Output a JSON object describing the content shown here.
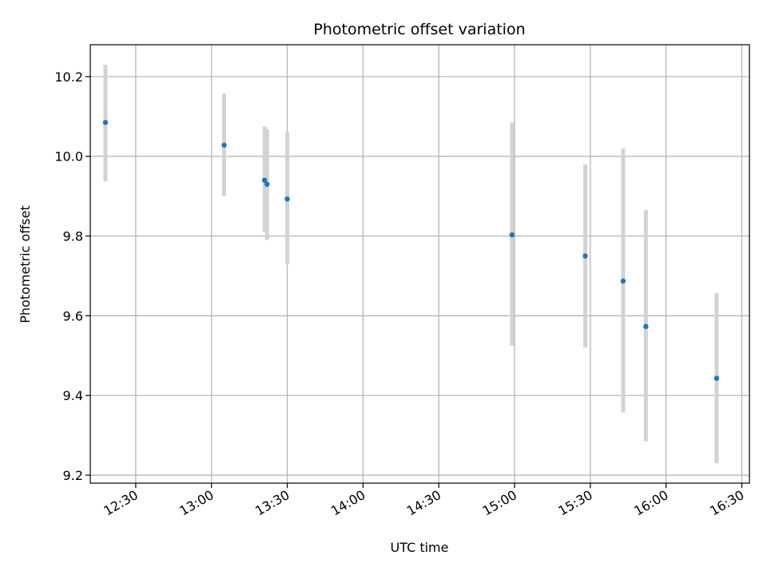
{
  "chart_data": {
    "type": "scatter",
    "title": "Photometric offset variation",
    "xlabel": "UTC time",
    "ylabel": "Photometric offset",
    "x_tick_labels": [
      "12:30",
      "13:00",
      "13:30",
      "14:00",
      "14:30",
      "15:00",
      "15:30",
      "16:00",
      "16:30"
    ],
    "x_ticks": [
      "12:30",
      "13:00",
      "13:30",
      "14:00",
      "14:30",
      "15:00",
      "15:30",
      "16:00",
      "16:30"
    ],
    "xlim": [
      "12:12",
      "16:33"
    ],
    "y_ticks": [
      9.2,
      9.4,
      9.6,
      9.8,
      10.0,
      10.2
    ],
    "y_tick_labels": [
      "9.2",
      "9.4",
      "9.6",
      "9.8",
      "10.0",
      "10.2"
    ],
    "ylim": [
      9.18,
      10.28
    ],
    "grid": true,
    "legend": "none",
    "series": [
      {
        "x": [
          "12:18",
          "13:05",
          "13:21",
          "13:22",
          "13:30",
          "14:59",
          "15:28",
          "15:43",
          "15:52",
          "16:20"
        ],
        "y": [
          10.085,
          10.028,
          9.94,
          9.93,
          9.893,
          9.803,
          9.75,
          9.687,
          9.573,
          9.443
        ],
        "yerr_low": [
          9.937,
          9.9,
          9.81,
          9.79,
          9.73,
          9.525,
          9.52,
          9.357,
          9.285,
          9.23
        ],
        "yerr_high": [
          10.23,
          10.157,
          10.075,
          10.068,
          10.06,
          10.085,
          9.98,
          10.02,
          9.865,
          9.657
        ]
      }
    ],
    "colors": {
      "points": "#1f77b4",
      "errorbars": "#d3d3d3",
      "grid": "#b0b0b0"
    }
  }
}
